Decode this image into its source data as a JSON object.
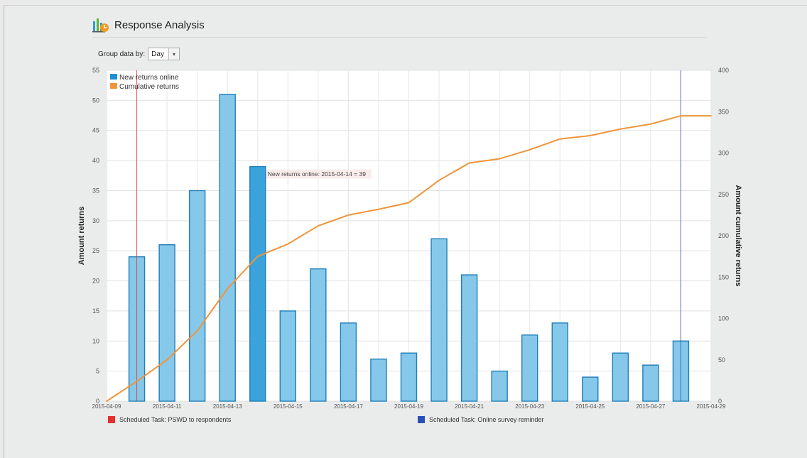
{
  "header": {
    "title": "Response Analysis",
    "icon": "bar-chart-icon"
  },
  "controls": {
    "group_label": "Group data by:",
    "group_value": "Day"
  },
  "tooltip": "New returns online: 2015-04-14 = 39",
  "scheduled_tasks": [
    {
      "label": "Scheduled Task: PSWD to respondents",
      "color": "#e53030",
      "date_index": 1
    },
    {
      "label": "Scheduled Task: Online survey reminder",
      "color": "#2a4fb8",
      "date_index": 19
    }
  ],
  "chart_data": {
    "type": "bar",
    "xlabels": [
      "2015-04-09",
      "2015-04-11",
      "2015-04-13",
      "2015-04-15",
      "2015-04-17",
      "2015-04-19",
      "2015-04-21",
      "2015-04-23",
      "2015-04-25",
      "2015-04-27",
      "2015-04-29"
    ],
    "dates": [
      "2015-04-09",
      "2015-04-10",
      "2015-04-11",
      "2015-04-12",
      "2015-04-13",
      "2015-04-14",
      "2015-04-15",
      "2015-04-16",
      "2015-04-17",
      "2015-04-18",
      "2015-04-19",
      "2015-04-20",
      "2015-04-21",
      "2015-04-22",
      "2015-04-23",
      "2015-04-24",
      "2015-04-25",
      "2015-04-26",
      "2015-04-27",
      "2015-04-28",
      "2015-04-29"
    ],
    "series": [
      {
        "name": "New returns online",
        "type": "bar",
        "axis": "left",
        "color": "#1e8fd0",
        "values": [
          null,
          24,
          26,
          35,
          51,
          39,
          15,
          22,
          13,
          7,
          8,
          27,
          21,
          5,
          11,
          13,
          4,
          8,
          6,
          10,
          null
        ]
      },
      {
        "name": "Cumulative returns",
        "type": "line",
        "axis": "right",
        "color": "#f0953a",
        "values": [
          0,
          24,
          50,
          85,
          136,
          175,
          190,
          212,
          225,
          232,
          240,
          267,
          288,
          293,
          304,
          317,
          321,
          329,
          335,
          345,
          345
        ]
      }
    ],
    "highlight_index": 5,
    "ylabel": "Amount returns",
    "y2label": "Amount cumulative returns",
    "ylim": [
      0,
      55
    ],
    "y2lim": [
      0,
      400
    ],
    "yticks": [
      0,
      5,
      10,
      15,
      20,
      25,
      30,
      35,
      40,
      45,
      50,
      55
    ],
    "y2ticks": [
      0,
      50,
      100,
      150,
      200,
      250,
      300,
      350,
      400
    ],
    "grid": true,
    "legend_position": "top-left"
  }
}
